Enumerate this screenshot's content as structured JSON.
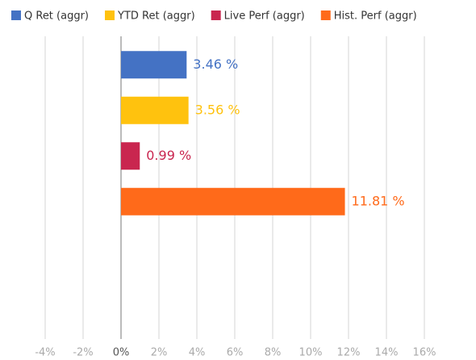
{
  "chart_data": {
    "type": "bar",
    "orientation": "horizontal",
    "series": [
      {
        "name": "Q Ret (aggr)",
        "color": "#4472c4",
        "values": [
          3.46
        ],
        "value_labels": [
          "3.46 %"
        ]
      },
      {
        "name": "YTD Ret (aggr)",
        "color": "#ffc20e",
        "values": [
          3.56
        ],
        "value_labels": [
          "3.56 %"
        ]
      },
      {
        "name": "Live Perf (aggr)",
        "color": "#c9264f",
        "values": [
          0.99
        ],
        "value_labels": [
          "0.99 %"
        ]
      },
      {
        "name": "Hist. Perf (aggr)",
        "color": "#ff6a1a",
        "values": [
          11.81
        ],
        "value_labels": [
          "11.81 %"
        ]
      }
    ],
    "xlim": [
      -4,
      16
    ],
    "xticks": [
      {
        "value": -4,
        "label": "-4%"
      },
      {
        "value": -2,
        "label": "-2%"
      },
      {
        "value": 0,
        "label": "0%"
      },
      {
        "value": 2,
        "label": "2%"
      },
      {
        "value": 4,
        "label": "4%"
      },
      {
        "value": 6,
        "label": "6%"
      },
      {
        "value": 8,
        "label": "8%"
      },
      {
        "value": 10,
        "label": "10%"
      },
      {
        "value": 12,
        "label": "12%"
      },
      {
        "value": 14,
        "label": "14%"
      },
      {
        "value": 16,
        "label": "16%"
      }
    ],
    "grid": true,
    "legend": "top"
  }
}
